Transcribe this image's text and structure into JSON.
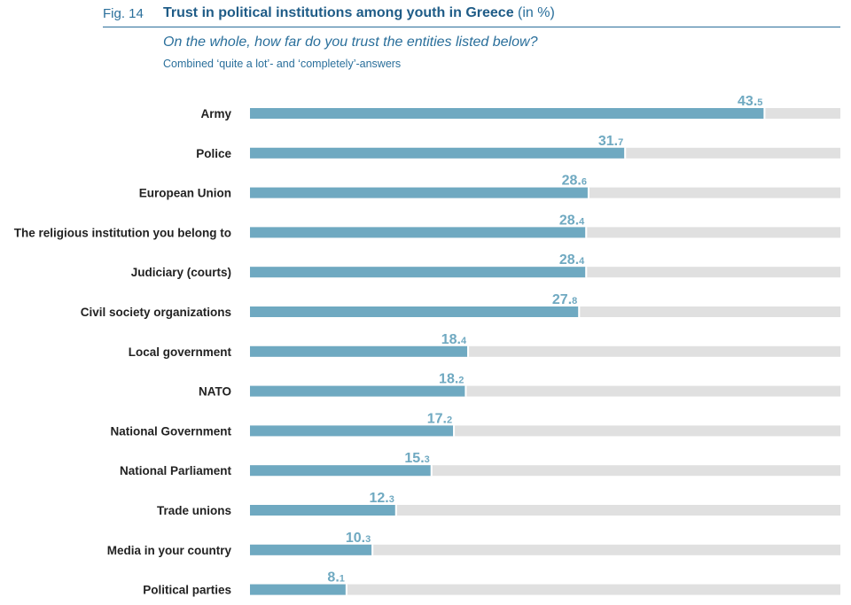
{
  "header": {
    "fig_label": "Fig. 14",
    "title": "Trust in political institutions among youth in Greece",
    "unit": "(in %)",
    "question": "On the whole, how far do you trust the entities listed below?",
    "note": "Combined ‘quite a lot’- and ‘completely’-answers"
  },
  "colors": {
    "bar": "#6fa9c1",
    "track": "#e0e0e0",
    "value_text": "#6fa9c1",
    "title": "#1f5c87"
  },
  "chart_data": {
    "type": "bar",
    "orientation": "horizontal",
    "title": "Trust in political institutions among youth in Greece",
    "xlim": [
      0,
      50
    ],
    "grid": false,
    "categories": [
      "Army",
      "Police",
      "European Union",
      "The religious institution you belong to",
      "Judiciary (courts)",
      "Civil society organizations",
      "Local government",
      "NATO",
      "National Government",
      "National Parliament",
      "Trade unions",
      "Media in your country",
      "Political parties"
    ],
    "values": [
      43.5,
      31.7,
      28.6,
      28.4,
      28.4,
      27.8,
      18.4,
      18.2,
      17.2,
      15.3,
      12.3,
      10.3,
      8.1
    ]
  }
}
